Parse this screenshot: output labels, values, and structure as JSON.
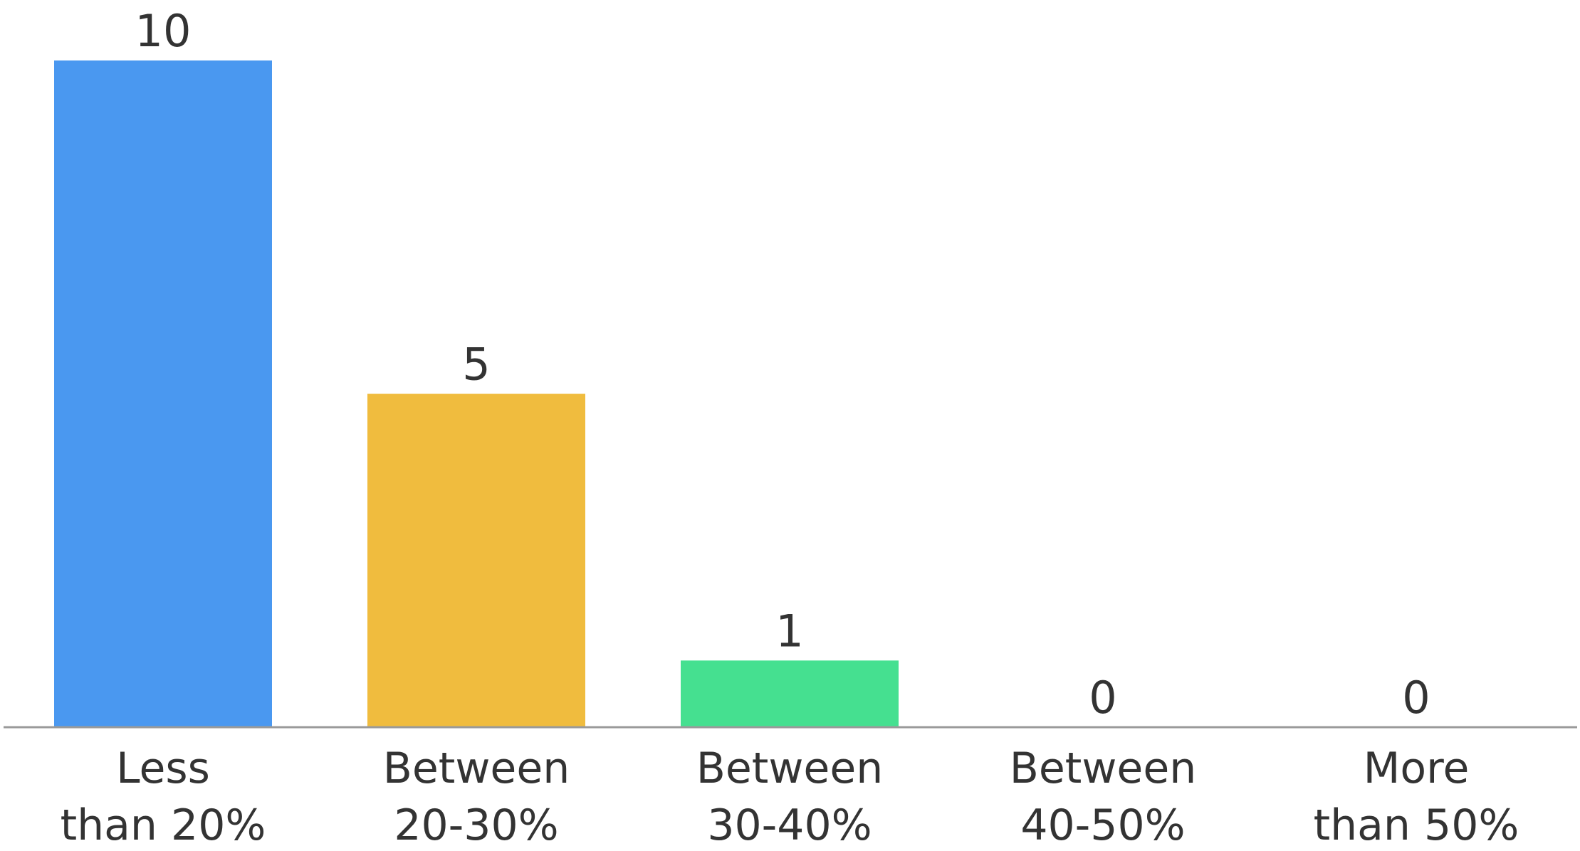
{
  "chart_data": {
    "type": "bar",
    "categories": [
      [
        "Less",
        "than 20%"
      ],
      [
        "Between",
        "20-30%"
      ],
      [
        "Between",
        "30-40%"
      ],
      [
        "Between",
        "40-50%"
      ],
      [
        "More",
        "than 50%"
      ]
    ],
    "values": [
      10,
      5,
      1,
      0,
      0
    ],
    "value_labels": [
      "10",
      "5",
      "1",
      "0",
      "0"
    ],
    "bar_colors": [
      "#4A98F0",
      "#F0BC3E",
      "#45E090",
      "#45E090",
      "#45E090"
    ],
    "ylim": [
      0,
      10
    ],
    "grid": false,
    "legend": "none",
    "axis_color": "#9A9A9A",
    "text_color": "#333333"
  }
}
